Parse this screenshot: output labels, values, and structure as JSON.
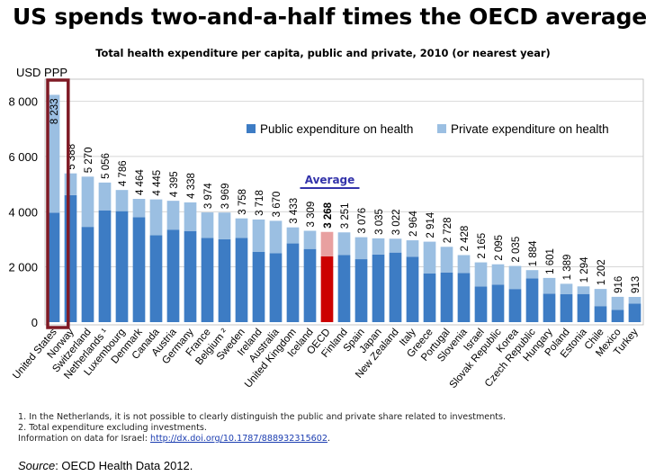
{
  "headline": "US spends two-and-a-half times the OECD average",
  "chart_data": {
    "type": "bar",
    "title": "Total health expenditure per capita, public and private, 2010 (or nearest year)",
    "ylabel": "USD PPP",
    "ylim": [
      0,
      8800
    ],
    "yticks": [
      "0",
      "2 000",
      "4 000",
      "6 000",
      "8 000"
    ],
    "ytick_values": [
      0,
      2000,
      4000,
      6000,
      8000
    ],
    "grid": true,
    "legend_position": "top-right",
    "highlight_category": "United States",
    "average_category": "OECD",
    "average_label": "Average",
    "colors": {
      "public": "#3d7cc4",
      "private": "#9bbfe2",
      "average_public": "#cc0000",
      "average_private": "#e8a0a0",
      "highlight_box": "#7f1a25",
      "average_label": "#3333aa"
    },
    "categories": [
      "United States",
      "Norway",
      "Switzerland",
      "Netherlands ¹",
      "Luxembourg",
      "Denmark",
      "Canada",
      "Austria",
      "Germany",
      "France",
      "Belgium ²",
      "Sweden",
      "Ireland",
      "Australia",
      "United Kingdom",
      "Iceland",
      "OECD",
      "Finland",
      "Spain",
      "Japan",
      "New Zealand",
      "Italy",
      "Greece",
      "Portugal",
      "Slovenia",
      "Israel",
      "Slovak Republic",
      "Korea",
      "Czech Republic",
      "Hungary",
      "Poland",
      "Estonia",
      "Chile",
      "Mexico",
      "Turkey"
    ],
    "totals": [
      8233,
      5388,
      5270,
      5056,
      4786,
      4464,
      4445,
      4395,
      4338,
      3974,
      3969,
      3758,
      3718,
      3670,
      3433,
      3309,
      3268,
      3251,
      3076,
      3035,
      3022,
      2964,
      2914,
      2728,
      2428,
      2165,
      2095,
      2035,
      1884,
      1601,
      1389,
      1294,
      1202,
      916,
      913
    ],
    "total_labels": [
      "8 233",
      "5 388",
      "5 270",
      "5 056",
      "4 786",
      "4 464",
      "4 445",
      "4 395",
      "4 338",
      "3 974",
      "3 969",
      "3 758",
      "3 718",
      "3 670",
      "3 433",
      "3 309",
      "3 268",
      "3 251",
      "3 076",
      "3 035",
      "3 022",
      "2 964",
      "2 914",
      "2 728",
      "2 428",
      "2 165",
      "2 095",
      "2 035",
      "1 884",
      "1 601",
      "1 389",
      "1 294",
      "1 202",
      "916",
      "913"
    ],
    "series": [
      {
        "name": "Public expenditure on health",
        "values": [
          3967,
          4600,
          3450,
          4050,
          4020,
          3800,
          3150,
          3350,
          3300,
          3050,
          3000,
          3050,
          2550,
          2500,
          2850,
          2650,
          2380,
          2430,
          2280,
          2450,
          2520,
          2370,
          1760,
          1800,
          1780,
          1290,
          1360,
          1200,
          1580,
          1030,
          1010,
          1020,
          580,
          440,
          670
        ]
      },
      {
        "name": "Private expenditure on health",
        "values": [
          4266,
          788,
          1820,
          1006,
          766,
          664,
          1295,
          1045,
          1038,
          924,
          969,
          708,
          1168,
          1170,
          583,
          659,
          888,
          821,
          796,
          585,
          502,
          594,
          1154,
          928,
          648,
          875,
          735,
          835,
          304,
          571,
          379,
          274,
          622,
          476,
          243
        ]
      }
    ]
  },
  "footnotes": [
    "1.  In the Netherlands, it is not possible to clearly distinguish the public and private share related to investments.",
    "2.  Total expenditure excluding investments."
  ],
  "israel_note_prefix": "Information on data for Israel: ",
  "israel_note_link": "http://dx.doi.org/10.1787/888932315602",
  "israel_note_suffix": ".",
  "source_label": "Source",
  "source_text": ": OECD Health Data 2012."
}
